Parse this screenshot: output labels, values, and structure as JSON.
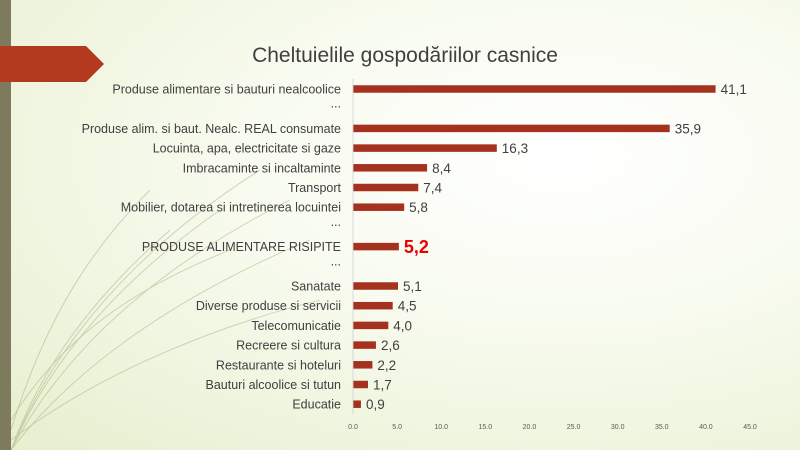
{
  "chart_data": {
    "type": "bar",
    "orientation": "horizontal",
    "title": "Cheltuielile gospodăriilor casnice",
    "categories": [
      "Produse alimentare si bauturi nealcoolice",
      "...",
      "Produse alim. si baut. Nealc. REAL consumate",
      "Locuinta, apa, electricitate si gaze",
      "Imbracaminte si incaltaminte",
      "Transport",
      "Mobilier, dotarea si intretinerea locuintei",
      "...",
      "PRODUSE ALIMENTARE RISIPITE",
      "...",
      "Sanatate",
      "Diverse produse si servicii",
      "Telecomunicatie",
      "Recreere si cultura",
      "Restaurante si hoteluri",
      "Bauturi alcoolice si tutun",
      "Educatie"
    ],
    "values": [
      41.1,
      null,
      35.9,
      16.3,
      8.4,
      7.4,
      5.8,
      null,
      5.2,
      null,
      5.1,
      4.5,
      4.0,
      2.6,
      2.2,
      1.7,
      0.9
    ],
    "value_labels": [
      "41,1",
      "",
      "35,9",
      "16,3",
      "8,4",
      "7,4",
      "5,8",
      "",
      "5,2",
      "",
      "5,1",
      "4,5",
      "4,0",
      "2,6",
      "2,2",
      "1,7",
      "0,9"
    ],
    "highlight_index": 8,
    "xlim": [
      0,
      45
    ],
    "x_ticks": [
      0,
      5,
      10,
      15,
      20,
      25,
      30,
      35,
      40,
      45
    ],
    "x_tick_labels": [
      "0.0",
      "5.0",
      "10.0",
      "15.0",
      "20.0",
      "25.0",
      "30.0",
      "35.0",
      "40.0",
      "45.0"
    ],
    "xlabel": "",
    "ylabel": "",
    "grid": false,
    "colors": {
      "bar": "#a5321f",
      "highlight_label": "#e60000",
      "accent_arrow": "#b33a1e"
    }
  }
}
